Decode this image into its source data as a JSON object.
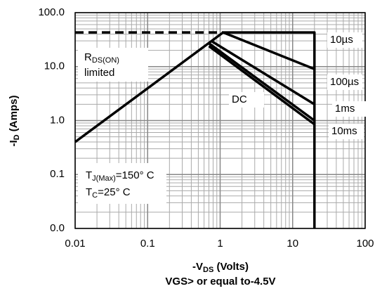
{
  "chart_data": {
    "type": "line",
    "xlabel": {
      "main": "-V",
      "sub": "DS",
      "rest": " (Volts)"
    },
    "ylabel": {
      "main": "-I",
      "sub": "D",
      "rest": " (Amps)"
    },
    "footnote": "VGS> or equal to-4.5V",
    "xscale": "log",
    "yscale": "log",
    "xlim": [
      0.01,
      100
    ],
    "ylim": [
      0.01,
      100
    ],
    "xticks": [
      0.01,
      0.1,
      1,
      10,
      100
    ],
    "yticks": [
      {
        "value": 0.01,
        "label": "0.0"
      },
      {
        "value": 0.1,
        "label": "0.1"
      },
      {
        "value": 1,
        "label": "1.0"
      },
      {
        "value": 10,
        "label": "10.0"
      },
      {
        "value": 100,
        "label": "100.0"
      }
    ],
    "grid": true,
    "series": [
      {
        "name": "10µs",
        "color": "#000000",
        "x": [
          0.01,
          1.1,
          20,
          20
        ],
        "values": [
          0.4,
          43,
          43,
          0.01
        ]
      },
      {
        "name": "100µs",
        "color": "#000000",
        "x": [
          1.1,
          20
        ],
        "values": [
          43,
          9
        ]
      },
      {
        "name": "1ms",
        "color": "#000000",
        "x": [
          0.75,
          20
        ],
        "values": [
          30,
          2
        ]
      },
      {
        "name": "10ms",
        "color": "#000000",
        "x": [
          0.7,
          20
        ],
        "values": [
          27,
          1
        ]
      },
      {
        "name": "DC",
        "color": "#000000",
        "x": [
          0.7,
          20
        ],
        "values": [
          24,
          0.85
        ]
      },
      {
        "color": "#000000",
        "dash": true,
        "x": [
          0.01,
          1.1
        ],
        "values": [
          43,
          43
        ]
      }
    ],
    "annotations": {
      "rds": {
        "main": "R",
        "sub": "DS(ON)",
        "line2": "limited"
      },
      "tj": {
        "main": "T",
        "sub": "J(Max)",
        "rest": "=150° C"
      },
      "tc": {
        "main": "T",
        "sub": "C",
        "rest": "=25° C"
      }
    }
  }
}
